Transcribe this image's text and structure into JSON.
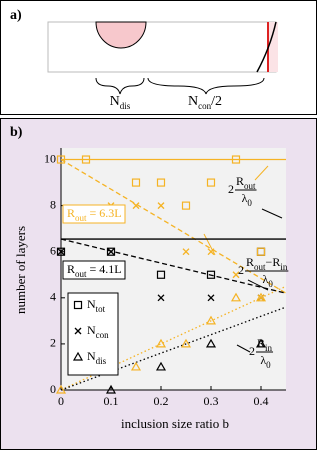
{
  "panel_a": {
    "label": "a)",
    "labels": [
      "Ndis",
      "Ncon/2"
    ]
  },
  "chart_data": {
    "type": "scatter",
    "panel_label": "b)",
    "xlabel": "inclusion size ratio b",
    "ylabel": "number of layers",
    "xlim": [
      0,
      0.45
    ],
    "ylim": [
      0,
      10.5
    ],
    "xticks": [
      0,
      0.1,
      0.2,
      0.3,
      0.4
    ],
    "yticks": [
      0,
      2,
      4,
      6,
      8,
      10
    ],
    "grid": false,
    "series": [
      {
        "name": "Ntot",
        "marker": "square",
        "color": "#000000",
        "x": [
          0,
          0.1,
          0.2,
          0.3,
          0.4
        ],
        "values": [
          6,
          6,
          5,
          5,
          6
        ]
      },
      {
        "name": "Ncon",
        "marker": "cross",
        "color": "#000000",
        "x": [
          0,
          0.1,
          0.2,
          0.3,
          0.4
        ],
        "values": [
          6,
          6,
          4,
          4,
          4
        ]
      },
      {
        "name": "Ndis",
        "marker": "triangle",
        "color": "#000000",
        "x": [
          0.1,
          0.2,
          0.3,
          0.4
        ],
        "values": [
          0,
          1,
          2,
          2
        ]
      },
      {
        "marker": "square",
        "color": "#f5b324",
        "x": [
          0,
          0.05,
          0.15,
          0.2,
          0.25,
          0.3,
          0.35,
          0.4
        ],
        "values": [
          10,
          10,
          9,
          9,
          8,
          9,
          10,
          6
        ]
      },
      {
        "marker": "cross",
        "color": "#f5b324",
        "x": [
          0.1,
          0.15,
          0.2,
          0.25,
          0.3,
          0.35,
          0.4
        ],
        "values": [
          8,
          8,
          8,
          6,
          6,
          5,
          4
        ]
      },
      {
        "marker": "triangle",
        "color": "#f5b324",
        "x": [
          0,
          0.1,
          0.15,
          0.2,
          0.25,
          0.3,
          0.35,
          0.4
        ],
        "values": [
          0,
          1,
          1,
          2,
          2,
          3,
          4,
          4
        ]
      }
    ],
    "lines": [
      {
        "color": "#f5b324",
        "style": "solid",
        "x": [
          0,
          0.45
        ],
        "values": [
          10,
          10
        ]
      },
      {
        "color": "#f5b324",
        "style": "dashed",
        "x": [
          0,
          0.45
        ],
        "values": [
          10,
          4.2
        ]
      },
      {
        "color": "#f5b324",
        "style": "dotted",
        "x": [
          0,
          0.45
        ],
        "values": [
          0,
          4.5
        ]
      },
      {
        "color": "#000000",
        "style": "solid",
        "x": [
          0,
          0.45
        ],
        "values": [
          6.55,
          6.55
        ]
      },
      {
        "color": "#000000",
        "style": "dashed",
        "x": [
          0,
          0.45
        ],
        "values": [
          6.55,
          4.2
        ]
      },
      {
        "color": "#000000",
        "style": "dotted",
        "x": [
          0,
          0.45
        ],
        "values": [
          0,
          3.6
        ]
      }
    ],
    "boxes": [
      {
        "text": "Rout = 6.3L",
        "color": "#f5b324"
      },
      {
        "text": "Rout = 4.1L",
        "color": "#000000"
      }
    ],
    "fractions": [
      {
        "prefix": "2",
        "numerator": "Rout",
        "denominator": "λ0"
      },
      {
        "prefix": "2",
        "numerator": "Rout−Rin",
        "denominator": "λ0"
      },
      {
        "prefix": "2",
        "numerator": "Rin",
        "denominator": "λ0"
      }
    ]
  }
}
